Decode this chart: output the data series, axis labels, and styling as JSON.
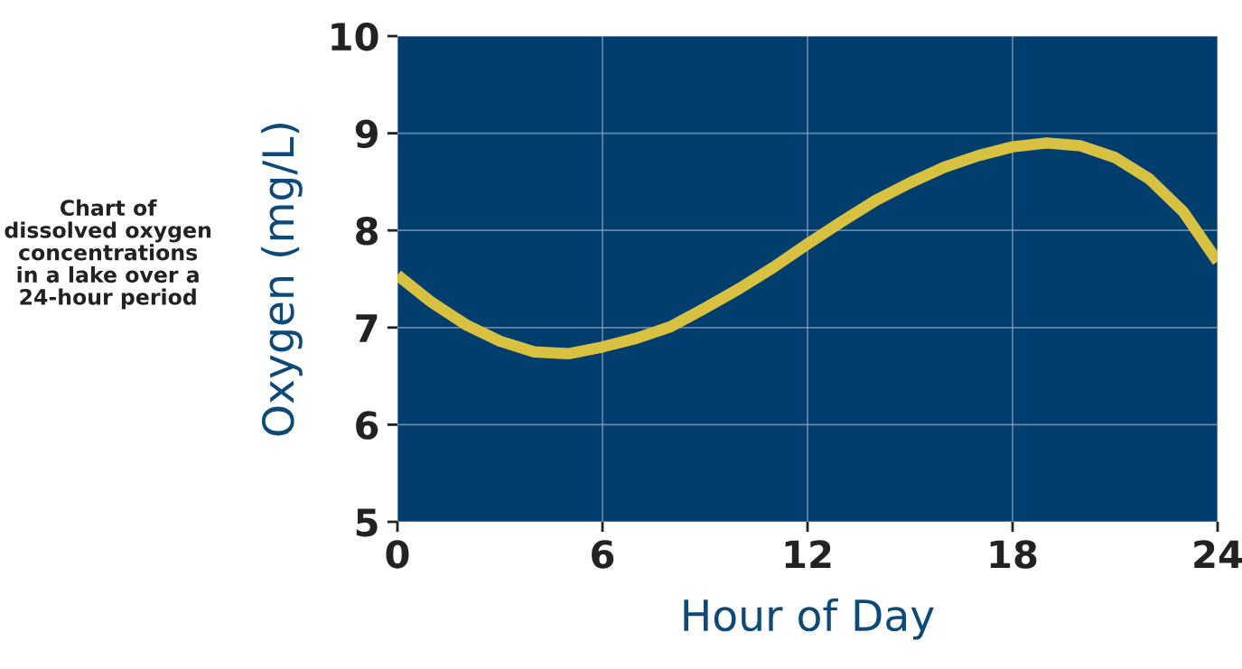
{
  "chart_data": {
    "type": "line",
    "title": "Chart of\ndissolved oxygen\nconcentrations\nin a lake over a\n24-hour period",
    "xlabel": "Hour of Day",
    "ylabel": "Oxygen (mg/L)",
    "x": [
      0,
      1,
      2,
      3,
      4,
      5,
      6,
      7,
      8,
      9,
      10,
      11,
      12,
      13,
      14,
      15,
      16,
      17,
      18,
      19,
      20,
      21,
      22,
      23,
      24
    ],
    "series": [
      {
        "color": "#d8c040",
        "values": [
          7.54,
          7.26,
          7.03,
          6.86,
          6.75,
          6.73,
          6.8,
          6.89,
          7.01,
          7.2,
          7.4,
          7.62,
          7.86,
          8.09,
          8.31,
          8.49,
          8.65,
          8.77,
          8.86,
          8.9,
          8.87,
          8.75,
          8.53,
          8.19,
          7.68
        ]
      }
    ],
    "xlim": [
      0,
      24
    ],
    "xticks": [
      0,
      6,
      12,
      18,
      24
    ],
    "ylim": [
      5,
      10
    ],
    "yticks": [
      5,
      6,
      7,
      8,
      9,
      10
    ],
    "grid": true,
    "marker": "none",
    "line_style": "solid"
  }
}
